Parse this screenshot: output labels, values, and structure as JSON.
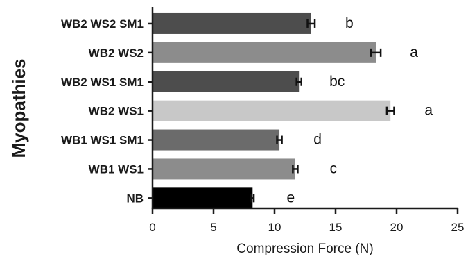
{
  "chart_data": {
    "type": "bar",
    "orientation": "horizontal",
    "title": "",
    "xlabel": "Compression Force (N)",
    "ylabel": "Myopathies",
    "xlim": [
      0,
      25
    ],
    "xticks": [
      "0",
      "5",
      "10",
      "15",
      "20",
      "25"
    ],
    "grid": false,
    "categories": [
      "WB2 WS2 SM1",
      "WB2 WS2",
      "WB2 WS1 SM1",
      "WB2 WS1",
      "WB1 WS1 SM1",
      "WB1 WS1",
      "NB"
    ],
    "values": [
      13.0,
      18.3,
      12.0,
      19.5,
      10.4,
      11.7,
      8.2
    ],
    "errors": [
      0.3,
      0.4,
      0.2,
      0.3,
      0.2,
      0.2,
      0.1
    ],
    "significance_letters": [
      "b",
      "a",
      "bc",
      "a",
      "d",
      "c",
      "e"
    ],
    "bar_colors": [
      "#4d4d4d",
      "#8c8c8c",
      "#4d4d4d",
      "#c8c8c8",
      "#6b6b6b",
      "#8c8c8c",
      "#000000"
    ]
  }
}
